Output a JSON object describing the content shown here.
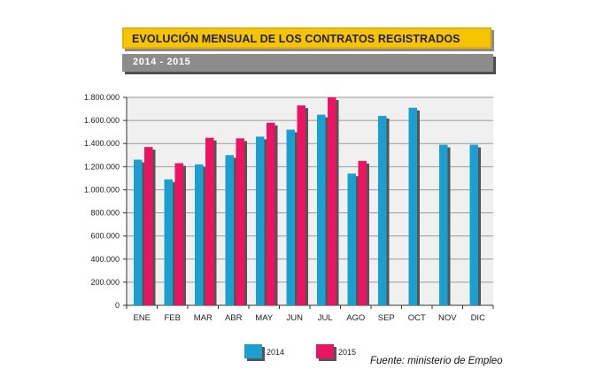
{
  "header": {
    "title": "EVOLUCIÓN MENSUAL DE LOS CONTRATOS REGISTRADOS",
    "subtitle": "2014 - 2015"
  },
  "source": "Fuente: ministerio de Empleo",
  "colors": {
    "series_2014": "#1a9fd0",
    "series_2015": "#ec1460",
    "title_banner": "#f6c400",
    "subtitle_banner": "#8c8c8c",
    "plot_background": "#f0f0f0",
    "grid": "#9a9a9a"
  },
  "chart_data": {
    "type": "bar",
    "title": "EVOLUCIÓN MENSUAL DE LOS CONTRATOS REGISTRADOS",
    "subtitle": "2014 - 2015",
    "xlabel": "",
    "ylabel": "",
    "categories": [
      "ENE",
      "FEB",
      "MAR",
      "ABR",
      "MAY",
      "JUN",
      "JUL",
      "AGO",
      "SEP",
      "OCT",
      "NOV",
      "DIC"
    ],
    "series": [
      {
        "name": "2014",
        "color": "#1a9fd0",
        "values": [
          1260000,
          1090000,
          1220000,
          1300000,
          1460000,
          1520000,
          1650000,
          1140000,
          1640000,
          1710000,
          1390000,
          1390000
        ]
      },
      {
        "name": "2015",
        "color": "#ec1460",
        "values": [
          1370000,
          1230000,
          1450000,
          1445000,
          1580000,
          1730000,
          1800000,
          1250000,
          null,
          null,
          null,
          null
        ]
      }
    ],
    "ylim": [
      0,
      1800000
    ],
    "yticks": [
      0,
      200000,
      400000,
      600000,
      800000,
      1000000,
      1200000,
      1400000,
      1600000,
      1800000
    ],
    "ytick_labels": [
      "0",
      "200.000",
      "400.000",
      "600.000",
      "800.000",
      "1.000.000",
      "1.200.000",
      "1.400.000",
      "1.600.000",
      "1.800.000"
    ],
    "grid": true,
    "legend": {
      "position": "bottom",
      "entries": [
        "2014",
        "2015"
      ]
    }
  }
}
